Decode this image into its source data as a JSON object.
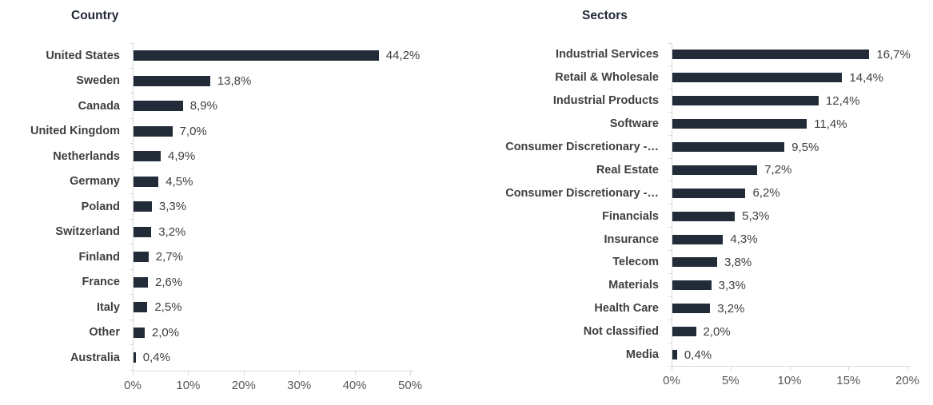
{
  "page": {
    "background": "#ffffff"
  },
  "colors": {
    "bar": "#222b38",
    "title": "#1f2733",
    "category_label": "#3f3f3f",
    "value_label": "#404040",
    "axis_line": "#d9d9d9",
    "tick_label": "#595959"
  },
  "chart_data": [
    {
      "type": "bar",
      "orientation": "horizontal",
      "title": "Country",
      "categories": [
        "United States",
        "Sweden",
        "Canada",
        "United Kingdom",
        "Netherlands",
        "Germany",
        "Poland",
        "Switzerland",
        "Finland",
        "France",
        "Italy",
        "Other",
        "Australia"
      ],
      "values": [
        44.2,
        13.8,
        8.9,
        7.0,
        4.9,
        4.5,
        3.3,
        3.2,
        2.7,
        2.6,
        2.5,
        2.0,
        0.4
      ],
      "value_labels": [
        "44,2%",
        "13,8%",
        "8,9%",
        "7,0%",
        "4,9%",
        "4,5%",
        "3,3%",
        "3,2%",
        "2,7%",
        "2,6%",
        "2,5%",
        "2,0%",
        "0,4%"
      ],
      "xlabel": "",
      "ylabel": "",
      "xlim": [
        0,
        50
      ],
      "x_tick_values": [
        0,
        10,
        20,
        30,
        40,
        50
      ],
      "x_tick_labels": [
        "0%",
        "10%",
        "20%",
        "30%",
        "40%",
        "50%"
      ],
      "grid": false,
      "legend": false
    },
    {
      "type": "bar",
      "orientation": "horizontal",
      "title": "Sectors",
      "categories": [
        "Industrial Services",
        "Retail & Wholesale",
        "Industrial Products",
        "Software",
        "Consumer Discretionary -…",
        "Real Estate",
        "Consumer Discretionary -…",
        "Financials",
        "Insurance",
        "Telecom",
        "Materials",
        "Health Care",
        "Not classified",
        "Media"
      ],
      "values": [
        16.7,
        14.4,
        12.4,
        11.4,
        9.5,
        7.2,
        6.2,
        5.3,
        4.3,
        3.8,
        3.3,
        3.2,
        2.0,
        0.4
      ],
      "value_labels": [
        "16,7%",
        "14,4%",
        "12,4%",
        "11,4%",
        "9,5%",
        "7,2%",
        "6,2%",
        "5,3%",
        "4,3%",
        "3,8%",
        "3,3%",
        "3,2%",
        "2,0%",
        "0,4%"
      ],
      "xlabel": "",
      "ylabel": "",
      "xlim": [
        0,
        20
      ],
      "x_tick_values": [
        0,
        5,
        10,
        15,
        20
      ],
      "x_tick_labels": [
        "0%",
        "5%",
        "10%",
        "15%",
        "20%"
      ],
      "grid": false,
      "legend": false
    }
  ]
}
